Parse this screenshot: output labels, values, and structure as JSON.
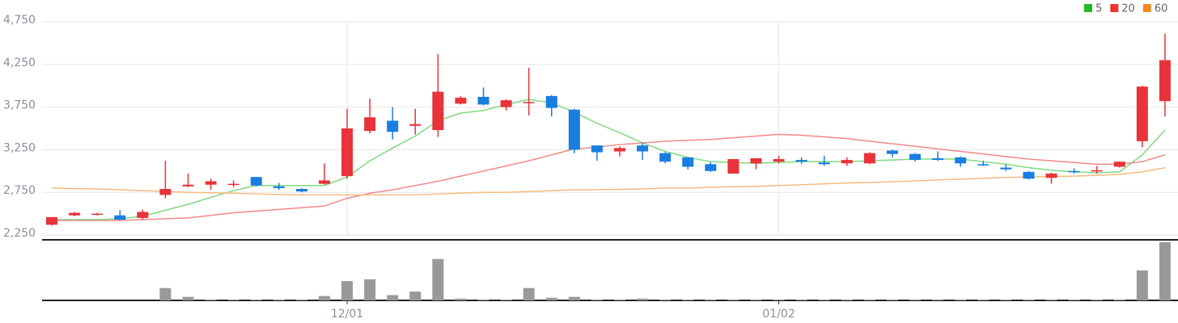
{
  "chart_data": {
    "type": "candlestick",
    "categories": [
      null,
      null,
      null,
      null,
      null,
      null,
      null,
      null,
      null,
      null,
      null,
      null,
      null,
      "12/01",
      null,
      null,
      null,
      null,
      null,
      null,
      null,
      null,
      null,
      null,
      null,
      null,
      null,
      null,
      null,
      null,
      null,
      null,
      "01/02",
      null,
      null,
      null,
      null,
      null,
      null,
      null,
      null,
      null,
      null,
      null,
      null,
      null,
      null,
      null,
      null,
      null
    ],
    "open": [
      2370,
      2480,
      2490,
      2480,
      2450,
      2720,
      2820,
      2840,
      2850,
      2930,
      2820,
      2790,
      2850,
      2940,
      3470,
      3590,
      3530,
      3480,
      3790,
      3870,
      3750,
      3800,
      3880,
      3720,
      3300,
      3230,
      3300,
      3210,
      3160,
      3080,
      2970,
      3090,
      3110,
      3130,
      3100,
      3090,
      3090,
      3240,
      3200,
      3150,
      3160,
      3080,
      3040,
      2990,
      2920,
      3000,
      3000,
      3050,
      3350,
      3820
    ],
    "close": [
      2460,
      2510,
      2500,
      2430,
      2520,
      2790,
      2840,
      2880,
      2850,
      2830,
      2800,
      2760,
      2890,
      3500,
      3630,
      3460,
      3550,
      3930,
      3860,
      3780,
      3830,
      3810,
      3740,
      3250,
      3220,
      3270,
      3230,
      3110,
      3050,
      3000,
      3140,
      3150,
      3140,
      3110,
      3080,
      3130,
      3210,
      3200,
      3130,
      3130,
      3090,
      3070,
      3020,
      2910,
      2970,
      2990,
      3010,
      3110,
      3990,
      4300
    ],
    "high": [
      2460,
      2520,
      2510,
      2540,
      2550,
      3120,
      2970,
      2910,
      2890,
      2930,
      2860,
      2800,
      3090,
      3730,
      3850,
      3750,
      3730,
      4370,
      3880,
      3980,
      3840,
      4210,
      3890,
      3730,
      3300,
      3290,
      3330,
      3220,
      3160,
      3100,
      3140,
      3150,
      3180,
      3160,
      3180,
      3160,
      3220,
      3250,
      3210,
      3230,
      3170,
      3120,
      3080,
      3000,
      2980,
      3030,
      3060,
      3110,
      4000,
      4610
    ],
    "low": [
      2360,
      2470,
      2480,
      2420,
      2430,
      2680,
      2810,
      2780,
      2810,
      2820,
      2780,
      2750,
      2840,
      2910,
      3440,
      3370,
      3430,
      3400,
      3780,
      3770,
      3710,
      3650,
      3640,
      3210,
      3120,
      3170,
      3130,
      3090,
      3020,
      2990,
      2970,
      3020,
      3090,
      3080,
      3060,
      3060,
      3080,
      3160,
      3110,
      3120,
      3050,
      3060,
      3000,
      2900,
      2850,
      2970,
      2970,
      3040,
      3280,
      3640
    ],
    "up_color": "#e8333a",
    "down_color": "#1a7de0",
    "series": [
      {
        "name": "5",
        "color": "#22bb22",
        "line_color": "#7fd97f",
        "values": [
          2430,
          2430,
          2430,
          2440,
          2470,
          2540,
          2610,
          2690,
          2770,
          2830,
          2830,
          2830,
          2830,
          2930,
          3120,
          3270,
          3410,
          3590,
          3680,
          3710,
          3780,
          3840,
          3800,
          3690,
          3560,
          3450,
          3330,
          3230,
          3160,
          3110,
          3100,
          3090,
          3100,
          3110,
          3110,
          3110,
          3120,
          3130,
          3140,
          3140,
          3140,
          3110,
          3080,
          3040,
          3010,
          2990,
          2980,
          2990,
          3190,
          3480
        ]
      },
      {
        "name": "20",
        "color": "#ee3333",
        "line_color": "#f08a8a",
        "values": [
          2420,
          2420,
          2420,
          2420,
          2430,
          2440,
          2450,
          2480,
          2510,
          2530,
          2550,
          2570,
          2590,
          2680,
          2740,
          2780,
          2830,
          2880,
          2940,
          3000,
          3060,
          3120,
          3190,
          3260,
          3280,
          3310,
          3330,
          3350,
          3360,
          3370,
          3390,
          3410,
          3430,
          3420,
          3400,
          3380,
          3350,
          3320,
          3290,
          3260,
          3230,
          3200,
          3170,
          3140,
          3120,
          3100,
          3080,
          3080,
          3110,
          3190
        ]
      },
      {
        "name": "60",
        "color": "#f08a24",
        "line_color": "#f5bb80",
        "values": [
          2800,
          2795,
          2790,
          2780,
          2770,
          2760,
          2750,
          2745,
          2740,
          2730,
          2725,
          2720,
          2720,
          2720,
          2720,
          2720,
          2720,
          2730,
          2740,
          2750,
          2750,
          2760,
          2770,
          2780,
          2780,
          2785,
          2790,
          2800,
          2800,
          2810,
          2815,
          2820,
          2830,
          2840,
          2850,
          2860,
          2865,
          2875,
          2885,
          2895,
          2905,
          2915,
          2925,
          2930,
          2935,
          2940,
          2950,
          2960,
          2990,
          3040
        ]
      }
    ],
    "volume": [
      0,
      0,
      0,
      0,
      0,
      14,
      4,
      1,
      1,
      1,
      1,
      1,
      5,
      22,
      24,
      6,
      10,
      47,
      2,
      1,
      1,
      14,
      3,
      4,
      1,
      1,
      2,
      1,
      1,
      1,
      1,
      1,
      1,
      1,
      1,
      1,
      1,
      1,
      1,
      1,
      1,
      1,
      1,
      1,
      1,
      1,
      1,
      1,
      34,
      66
    ],
    "volume_color": "#999999",
    "ylim": [
      2250,
      4750
    ],
    "yticks": [
      {
        "value": 2250,
        "label": "2,250"
      },
      {
        "value": 2750,
        "label": "2,750"
      },
      {
        "value": 3250,
        "label": "3,250"
      },
      {
        "value": 3750,
        "label": "3,750"
      },
      {
        "value": 4250,
        "label": "4,250"
      },
      {
        "value": 4750,
        "label": "4,750"
      }
    ],
    "grid": true
  }
}
